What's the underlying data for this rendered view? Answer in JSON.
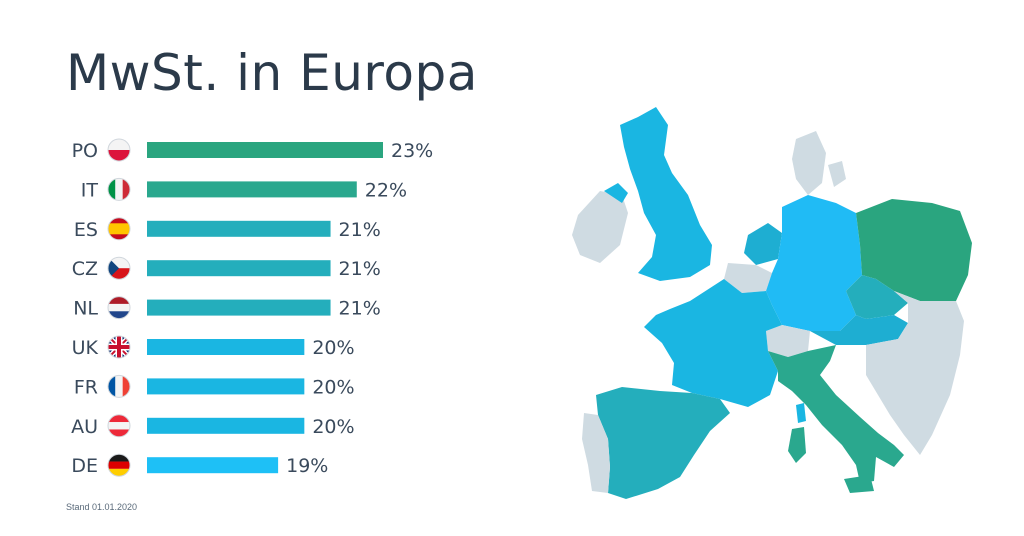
{
  "header": {
    "title": "MwSt. in Europa"
  },
  "footnote": "Stand 01.01.2020",
  "colors": {
    "green": "#2aa57f",
    "teal": "#1fb0c4",
    "blue": "#1ab6e2",
    "lightblue": "#20bbf5",
    "gray": "#cfdbe2"
  },
  "chart_data": {
    "type": "bar",
    "orientation": "horizontal",
    "title": "MwSt. in Europa",
    "categories": [
      "PO",
      "IT",
      "ES",
      "CZ",
      "NL",
      "UK",
      "FR",
      "AU",
      "DE"
    ],
    "values": [
      23,
      22,
      21,
      21,
      21,
      20,
      20,
      20,
      19
    ],
    "value_labels": [
      "23%",
      "22%",
      "21%",
      "21%",
      "21%",
      "20%",
      "20%",
      "20%",
      "19%"
    ],
    "bar_colors": [
      "#2aa57f",
      "#2aa88e",
      "#24aebc",
      "#24aebc",
      "#24aebc",
      "#1ab6e2",
      "#1ab6e2",
      "#1ab6e2",
      "#1ec0f6"
    ],
    "flags": [
      "poland-flag-icon",
      "italy-flag-icon",
      "spain-flag-icon",
      "czech-flag-icon",
      "netherlands-flag-icon",
      "uk-flag-icon",
      "france-flag-icon",
      "austria-flag-icon",
      "germany-flag-icon"
    ],
    "xlim": [
      14,
      23
    ],
    "grid": false,
    "legend": "none"
  },
  "map": {
    "name": "europe-map"
  }
}
